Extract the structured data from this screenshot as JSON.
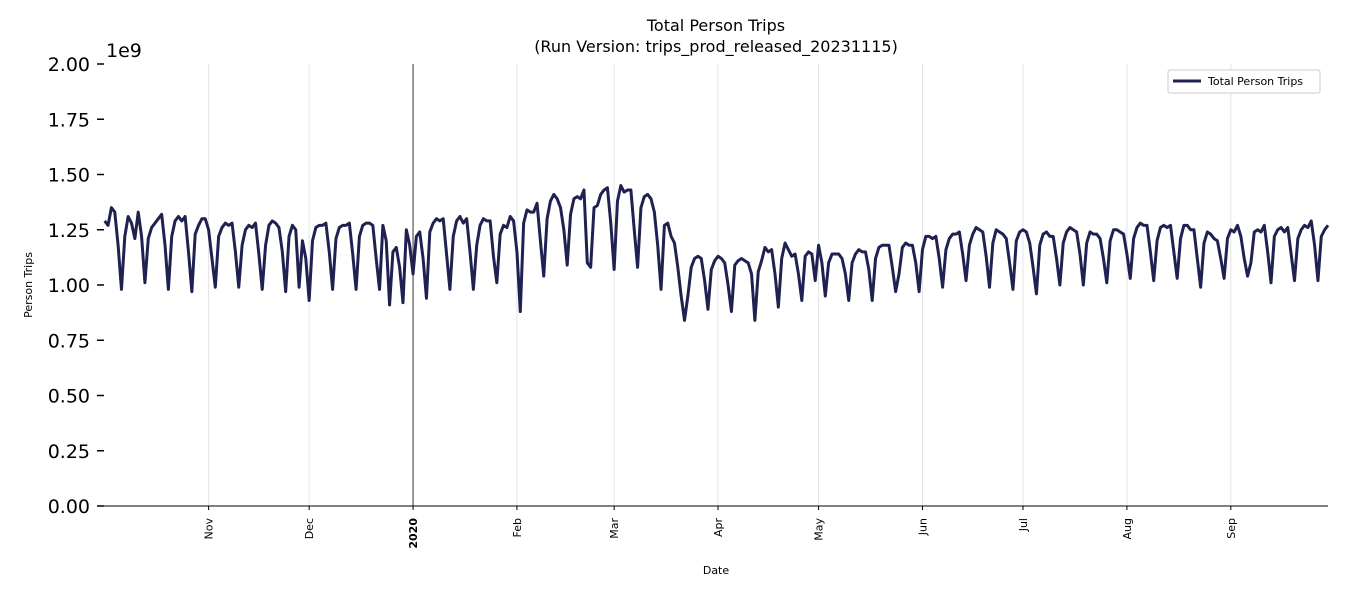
{
  "chart_data": {
    "type": "line",
    "title": "Total Person Trips",
    "subtitle": "(Run Version: trips_prod_released_20231115)",
    "xlabel": "Date",
    "ylabel": "Person Trips",
    "y_offset_label": "1e9",
    "ylim": [
      0,
      2.0
    ],
    "xlim": [
      "2019-09-29",
      "2020-09-30"
    ],
    "grid": "vertical at month ticks",
    "legend_placement": "top-right",
    "line_color": "#1f2150",
    "y_ticks": [
      "0.00",
      "0.25",
      "0.50",
      "0.75",
      "1.00",
      "1.25",
      "1.50",
      "1.75",
      "2.00"
    ],
    "x_ticks": [
      {
        "date": "2019-11-01",
        "label": "Nov"
      },
      {
        "date": "2019-12-01",
        "label": "Dec"
      },
      {
        "date": "2020-01-01",
        "label": "2020",
        "bold": true
      },
      {
        "date": "2020-02-01",
        "label": "Feb"
      },
      {
        "date": "2020-03-01",
        "label": "Mar"
      },
      {
        "date": "2020-04-01",
        "label": "Apr"
      },
      {
        "date": "2020-05-01",
        "label": "May"
      },
      {
        "date": "2020-06-01",
        "label": "Jun"
      },
      {
        "date": "2020-07-01",
        "label": "Jul"
      },
      {
        "date": "2020-08-01",
        "label": "Aug"
      },
      {
        "date": "2020-09-01",
        "label": "Sep"
      }
    ],
    "series": [
      {
        "name": "Total Person Trips",
        "x_start": "2019-10-01",
        "x_step": "1 day",
        "values": [
          1.29,
          1.27,
          1.35,
          1.33,
          1.18,
          0.98,
          1.22,
          1.31,
          1.28,
          1.21,
          1.33,
          1.22,
          1.01,
          1.21,
          1.26,
          1.28,
          1.3,
          1.32,
          1.18,
          0.98,
          1.22,
          1.29,
          1.31,
          1.29,
          1.31,
          1.15,
          0.97,
          1.23,
          1.27,
          1.3,
          1.3,
          1.25,
          1.12,
          0.99,
          1.22,
          1.26,
          1.28,
          1.27,
          1.28,
          1.15,
          0.99,
          1.18,
          1.25,
          1.27,
          1.26,
          1.28,
          1.14,
          0.98,
          1.18,
          1.27,
          1.29,
          1.28,
          1.26,
          1.15,
          0.97,
          1.22,
          1.27,
          1.25,
          0.99,
          1.2,
          1.12,
          0.93,
          1.2,
          1.26,
          1.27,
          1.27,
          1.28,
          1.15,
          0.98,
          1.21,
          1.26,
          1.27,
          1.27,
          1.28,
          1.14,
          0.98,
          1.22,
          1.27,
          1.28,
          1.28,
          1.27,
          1.12,
          0.98,
          1.27,
          1.2,
          0.91,
          1.15,
          1.17,
          1.08,
          0.92,
          1.25,
          1.18,
          1.05,
          1.22,
          1.24,
          1.12,
          0.94,
          1.24,
          1.28,
          1.3,
          1.29,
          1.3,
          1.14,
          0.98,
          1.22,
          1.29,
          1.31,
          1.28,
          1.3,
          1.15,
          0.98,
          1.18,
          1.27,
          1.3,
          1.29,
          1.29,
          1.13,
          1.01,
          1.23,
          1.27,
          1.26,
          1.31,
          1.29,
          1.15,
          0.88,
          1.28,
          1.34,
          1.33,
          1.33,
          1.37,
          1.2,
          1.04,
          1.3,
          1.38,
          1.41,
          1.39,
          1.35,
          1.25,
          1.09,
          1.32,
          1.39,
          1.4,
          1.39,
          1.43,
          1.1,
          1.08,
          1.35,
          1.36,
          1.41,
          1.43,
          1.44,
          1.28,
          1.07,
          1.38,
          1.45,
          1.42,
          1.43,
          1.43,
          1.25,
          1.08,
          1.35,
          1.4,
          1.41,
          1.39,
          1.33,
          1.18,
          0.98,
          1.27,
          1.28,
          1.22,
          1.19,
          1.08,
          0.95,
          0.84,
          0.95,
          1.08,
          1.12,
          1.13,
          1.12,
          1.02,
          0.89,
          1.07,
          1.11,
          1.13,
          1.12,
          1.1,
          1.0,
          0.88,
          1.09,
          1.11,
          1.12,
          1.11,
          1.1,
          1.05,
          0.84,
          1.06,
          1.11,
          1.17,
          1.15,
          1.16,
          1.05,
          0.9,
          1.12,
          1.19,
          1.16,
          1.13,
          1.14,
          1.05,
          0.93,
          1.13,
          1.15,
          1.14,
          1.02,
          1.18,
          1.1,
          0.95,
          1.1,
          1.14,
          1.14,
          1.14,
          1.12,
          1.05,
          0.93,
          1.1,
          1.14,
          1.16,
          1.15,
          1.15,
          1.07,
          0.93,
          1.12,
          1.17,
          1.18,
          1.18,
          1.18,
          1.08,
          0.97,
          1.05,
          1.17,
          1.19,
          1.18,
          1.18,
          1.1,
          0.97,
          1.16,
          1.22,
          1.22,
          1.21,
          1.22,
          1.12,
          0.99,
          1.16,
          1.21,
          1.23,
          1.23,
          1.24,
          1.14,
          1.02,
          1.18,
          1.23,
          1.26,
          1.25,
          1.24,
          1.13,
          0.99,
          1.19,
          1.25,
          1.24,
          1.23,
          1.21,
          1.1,
          0.98,
          1.2,
          1.24,
          1.25,
          1.24,
          1.19,
          1.08,
          0.96,
          1.18,
          1.23,
          1.24,
          1.22,
          1.22,
          1.12,
          1.0,
          1.19,
          1.24,
          1.26,
          1.25,
          1.24,
          1.14,
          1.0,
          1.19,
          1.24,
          1.23,
          1.23,
          1.21,
          1.12,
          1.01,
          1.2,
          1.25,
          1.25,
          1.24,
          1.23,
          1.14,
          1.03,
          1.21,
          1.26,
          1.28,
          1.27,
          1.27,
          1.15,
          1.02,
          1.2,
          1.26,
          1.27,
          1.26,
          1.27,
          1.15,
          1.03,
          1.21,
          1.27,
          1.27,
          1.25,
          1.25,
          1.12,
          0.99,
          1.19,
          1.24,
          1.23,
          1.21,
          1.2,
          1.12,
          1.03,
          1.21,
          1.25,
          1.24,
          1.27,
          1.22,
          1.12,
          1.04,
          1.1,
          1.24,
          1.25,
          1.24,
          1.27,
          1.15,
          1.01,
          1.22,
          1.25,
          1.26,
          1.24,
          1.26,
          1.14,
          1.02,
          1.21,
          1.25,
          1.27,
          1.26,
          1.29,
          1.18,
          1.02,
          1.22,
          1.25,
          1.27
        ]
      }
    ]
  }
}
